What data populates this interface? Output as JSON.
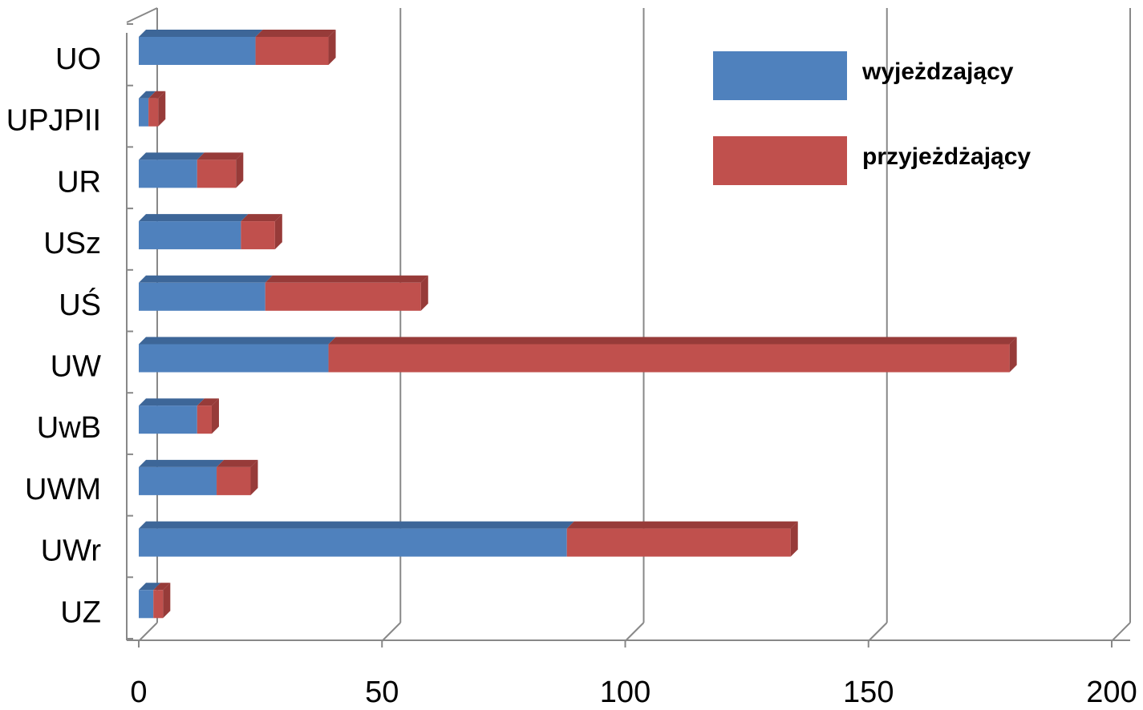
{
  "chart_data": {
    "type": "bar",
    "orientation": "horizontal",
    "stacked": true,
    "style": "3d",
    "categories": [
      "UO",
      "UPJPII",
      "UR",
      "USz",
      "UŚ",
      "UW",
      "UwB",
      "UWM",
      "UWr",
      "UZ"
    ],
    "series": [
      {
        "name": "wyjeżdzający",
        "values": [
          24,
          2,
          12,
          21,
          26,
          39,
          12,
          16,
          88,
          3
        ],
        "color": "#4F81BD",
        "top_color": "#3D6698"
      },
      {
        "name": "przyjeżdżający",
        "values": [
          15,
          2,
          8,
          7,
          32,
          140,
          3,
          7,
          46,
          2
        ],
        "color": "#C0504D",
        "top_color": "#973B39"
      }
    ],
    "x_ticks": [
      "0",
      "50",
      "100",
      "150",
      "200"
    ],
    "xlim": [
      0,
      200
    ],
    "grid": true,
    "legend_position": "top-right"
  }
}
